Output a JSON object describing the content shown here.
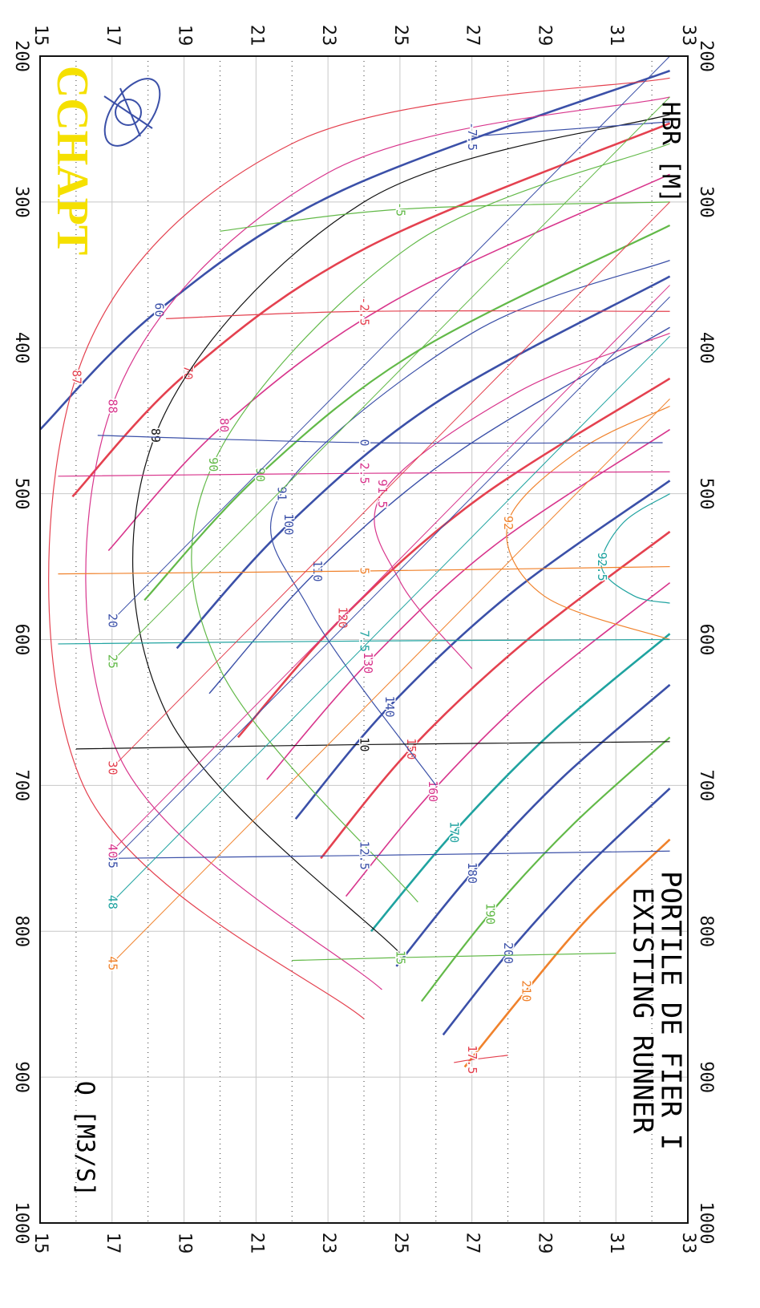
{
  "chart_data": {
    "type": "line",
    "title": "PORTILE DE FIER I",
    "subtitle": "EXISTING RUNNER",
    "x_label": "Q [M3/S]",
    "y_label": "HBR [M]",
    "logo": "CCHAPT",
    "xlim": [
      200,
      1000
    ],
    "xticks": [
      200,
      300,
      400,
      500,
      600,
      700,
      800,
      900,
      1000
    ],
    "ylim": [
      15,
      33
    ],
    "yticks": [
      15,
      17,
      19,
      21,
      23,
      25,
      27,
      29,
      31,
      33
    ],
    "yminor": [
      16,
      18,
      20,
      22,
      24,
      26,
      28,
      30,
      32
    ],
    "grid": true,
    "series": [
      {
        "name": "60",
        "color": "#3b50a8",
        "width": 2.6,
        "x": [
          210,
          292,
          374,
          456
        ],
        "values": [
          32.5,
          23.4,
          18.3,
          15
        ]
      },
      {
        "name": "70",
        "color": "#e4414f",
        "width": 2.6,
        "x": [
          246,
          331,
          417,
          502
        ],
        "values": [
          32.5,
          24.1,
          19.1,
          15.9
        ]
      },
      {
        "name": "80",
        "color": "#d8358c",
        "width": 1.6,
        "x": [
          281,
          367,
          453,
          539
        ],
        "values": [
          32.5,
          24.9,
          20.1,
          16.9
        ]
      },
      {
        "name": "90",
        "color": "#62b948",
        "width": 2.2,
        "x": [
          316,
          402,
          487,
          573
        ],
        "values": [
          32.5,
          25.5,
          21.1,
          17.9
        ]
      },
      {
        "name": "100",
        "color": "#3b50a8",
        "width": 2.6,
        "x": [
          351,
          436,
          521,
          606
        ],
        "values": [
          32.5,
          26.1,
          21.9,
          18.8
        ]
      },
      {
        "name": "110",
        "color": "#3b50a8",
        "width": 1.4,
        "x": [
          386,
          470,
          553,
          637
        ],
        "values": [
          32.5,
          26.7,
          22.7,
          19.7
        ]
      },
      {
        "name": "120",
        "color": "#e4414f",
        "width": 2.6,
        "x": [
          421,
          503,
          585,
          667
        ],
        "values": [
          32.5,
          27.2,
          23.4,
          20.5
        ]
      },
      {
        "name": "130",
        "color": "#d8358c",
        "width": 1.6,
        "x": [
          456,
          536,
          616,
          696
        ],
        "values": [
          32.5,
          27.6,
          24.1,
          21.3
        ]
      },
      {
        "name": "140",
        "color": "#3b50a8",
        "width": 2.6,
        "x": [
          491,
          568,
          646,
          723
        ],
        "values": [
          32.5,
          28.1,
          24.7,
          22.1
        ]
      },
      {
        "name": "150",
        "color": "#e4414f",
        "width": 2.6,
        "x": [
          526,
          601,
          675,
          750
        ],
        "values": [
          32.5,
          28.5,
          25.3,
          22.8
        ]
      },
      {
        "name": "160",
        "color": "#d8358c",
        "width": 1.6,
        "x": [
          561,
          633,
          704,
          776
        ],
        "values": [
          32.5,
          28.8,
          25.9,
          23.5
        ]
      },
      {
        "name": "170",
        "color": "#1fa3a0",
        "width": 2.6,
        "x": [
          596,
          664,
          732,
          800
        ],
        "values": [
          32.5,
          29.2,
          26.5,
          24.2
        ]
      },
      {
        "name": "180",
        "color": "#3b50a8",
        "width": 2.6,
        "x": [
          631,
          695,
          760,
          824
        ],
        "values": [
          32.5,
          29.5,
          27.0,
          24.9
        ]
      },
      {
        "name": "190",
        "color": "#62b948",
        "width": 2.2,
        "x": [
          667,
          727,
          788,
          848
        ],
        "values": [
          32.5,
          29.8,
          27.5,
          25.6
        ]
      },
      {
        "name": "200",
        "color": "#3b50a8",
        "width": 2.6,
        "x": [
          702,
          758,
          815,
          871
        ],
        "values": [
          32.5,
          30.1,
          28.0,
          26.2
        ]
      },
      {
        "name": "210",
        "color": "#f0822c",
        "width": 2.6,
        "x": [
          737,
          789,
          841,
          893
        ],
        "values": [
          32.5,
          30.3,
          28.5,
          26.8
        ]
      },
      {
        "name": "87",
        "color": "#e4414f",
        "width": 1.2,
        "x": [
          215,
          260,
          420,
          700,
          860
        ],
        "values": [
          32.5,
          22,
          16,
          16.2,
          24
        ]
      },
      {
        "name": "88",
        "color": "#d8358c",
        "width": 1.2,
        "x": [
          228,
          280,
          440,
          680,
          840
        ],
        "values": [
          32.5,
          23,
          17,
          17.2,
          24.5
        ]
      },
      {
        "name": "89",
        "color": "#111111",
        "width": 1.2,
        "x": [
          240,
          300,
          460,
          650,
          815
        ],
        "values": [
          32.5,
          24,
          18.2,
          18.5,
          25
        ]
      },
      {
        "name": "90",
        "color": "#62b948",
        "width": 1.2,
        "x": [
          260,
          330,
          480,
          620,
          780
        ],
        "values": [
          32.5,
          25.3,
          19.8,
          20,
          25.5
        ]
      },
      {
        "name": "91",
        "color": "#3b50a8",
        "width": 1.2,
        "x": [
          340,
          390,
          500,
          580,
          700
        ],
        "values": [
          32.5,
          27,
          21.7,
          22.5,
          26
        ]
      },
      {
        "name": "91.5",
        "color": "#d8358c",
        "width": 1.2,
        "x": [
          390,
          430,
          500,
          560,
          620
        ],
        "values": [
          32.5,
          28.3,
          24.5,
          25,
          27
        ]
      },
      {
        "name": "92",
        "color": "#f0822c",
        "width": 1.2,
        "x": [
          440,
          470,
          520,
          570,
          600
        ],
        "values": [
          32.5,
          30,
          28,
          29,
          32.5
        ]
      },
      {
        "name": "92.5",
        "color": "#1fa3a0",
        "width": 1.2,
        "x": [
          500,
          520,
          550,
          570,
          575
        ],
        "values": [
          32.5,
          31.2,
          30.6,
          31.5,
          32.5
        ]
      },
      {
        "name": "-7.5",
        "color": "#3b50a8",
        "width": 1.2,
        "x": [
          245,
          255
        ],
        "values": [
          32.5,
          27
        ]
      },
      {
        "name": "-5",
        "color": "#62b948",
        "width": 1.2,
        "x": [
          300,
          305,
          320
        ],
        "values": [
          32.5,
          25,
          20
        ]
      },
      {
        "name": "-2.5",
        "color": "#e4414f",
        "width": 1.2,
        "x": [
          375,
          375,
          380
        ],
        "values": [
          32.5,
          24,
          18.5
        ]
      },
      {
        "name": "0",
        "color": "#3b50a8",
        "width": 1.2,
        "x": [
          465,
          465,
          460
        ],
        "values": [
          32.3,
          24,
          16.6
        ]
      },
      {
        "name": "2.5",
        "color": "#d8358c",
        "width": 1.2,
        "x": [
          485,
          486,
          488
        ],
        "values": [
          32.5,
          24,
          15.5
        ]
      },
      {
        "name": "5",
        "color": "#f0822c",
        "width": 1.2,
        "x": [
          550,
          553,
          555
        ],
        "values": [
          32.5,
          24,
          15.5
        ]
      },
      {
        "name": "7.5",
        "color": "#1fa3a0",
        "width": 1.2,
        "x": [
          600,
          601,
          603
        ],
        "values": [
          32.5,
          24,
          15.5
        ]
      },
      {
        "name": "10",
        "color": "#111111",
        "width": 1.2,
        "x": [
          670,
          672,
          675
        ],
        "values": [
          32.5,
          24,
          16
        ]
      },
      {
        "name": "12.5",
        "color": "#3b50a8",
        "width": 1.2,
        "x": [
          745,
          748,
          750
        ],
        "values": [
          32.5,
          24,
          17
        ]
      },
      {
        "name": "15",
        "color": "#62b948",
        "width": 1.2,
        "x": [
          815,
          818,
          820
        ],
        "values": [
          31,
          25,
          22
        ]
      },
      {
        "name": "17.5",
        "color": "#e4414f",
        "width": 1.2,
        "x": [
          885,
          888,
          890
        ],
        "values": [
          28,
          27,
          26.5
        ]
      },
      {
        "name": "20",
        "color": "#3b50a8",
        "width": 1.0,
        "x": [
          200,
          587
        ],
        "values": [
          32.5,
          17
        ]
      },
      {
        "name": "25",
        "color": "#62b948",
        "width": 1.0,
        "x": [
          228,
          615
        ],
        "values": [
          32.5,
          17
        ]
      },
      {
        "name": "30",
        "color": "#e4414f",
        "width": 1.0,
        "x": [
          300,
          688
        ],
        "values": [
          32.5,
          17
        ]
      },
      {
        "name": "35",
        "color": "#3b50a8",
        "width": 1.0,
        "x": [
          365,
          752
        ],
        "values": [
          32.5,
          17
        ]
      },
      {
        "name": "40",
        "color": "#d8358c",
        "width": 1.0,
        "x": [
          357,
          745
        ],
        "values": [
          32.5,
          17
        ]
      },
      {
        "name": "45",
        "color": "#f0822c",
        "width": 1.0,
        "x": [
          435,
          822
        ],
        "values": [
          32.5,
          17
        ]
      },
      {
        "name": "48",
        "color": "#1fa3a0",
        "width": 1.0,
        "x": [
          392,
          780
        ],
        "values": [
          32.5,
          17
        ]
      }
    ]
  }
}
